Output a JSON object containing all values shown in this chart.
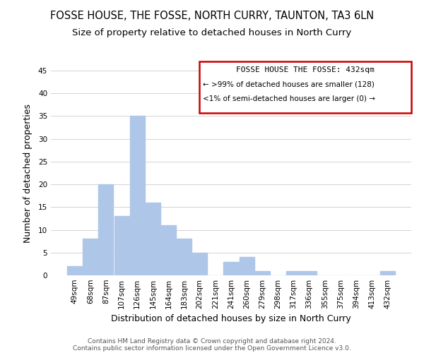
{
  "title": "FOSSE HOUSE, THE FOSSE, NORTH CURRY, TAUNTON, TA3 6LN",
  "subtitle": "Size of property relative to detached houses in North Curry",
  "xlabel": "Distribution of detached houses by size in North Curry",
  "ylabel": "Number of detached properties",
  "bar_labels": [
    "49sqm",
    "68sqm",
    "87sqm",
    "107sqm",
    "126sqm",
    "145sqm",
    "164sqm",
    "183sqm",
    "202sqm",
    "221sqm",
    "241sqm",
    "260sqm",
    "279sqm",
    "298sqm",
    "317sqm",
    "336sqm",
    "355sqm",
    "375sqm",
    "394sqm",
    "413sqm",
    "432sqm"
  ],
  "bar_values": [
    2,
    8,
    20,
    13,
    35,
    16,
    11,
    8,
    5,
    0,
    3,
    4,
    1,
    0,
    1,
    1,
    0,
    0,
    0,
    0,
    1
  ],
  "bar_color": "#aec6e8",
  "ylim": [
    0,
    45
  ],
  "yticks": [
    0,
    5,
    10,
    15,
    20,
    25,
    30,
    35,
    40,
    45
  ],
  "legend_title": "FOSSE HOUSE THE FOSSE: 432sqm",
  "legend_line1": "← >99% of detached houses are smaller (128)",
  "legend_line2": "<1% of semi-detached houses are larger (0) →",
  "legend_box_edge_color": "#cc0000",
  "footer_line1": "Contains HM Land Registry data © Crown copyright and database right 2024.",
  "footer_line2": "Contains public sector information licensed under the Open Government Licence v3.0.",
  "title_fontsize": 10.5,
  "subtitle_fontsize": 9.5,
  "axis_label_fontsize": 9,
  "tick_fontsize": 7.5,
  "footer_fontsize": 6.5,
  "bg_color": "#f0f0f0"
}
